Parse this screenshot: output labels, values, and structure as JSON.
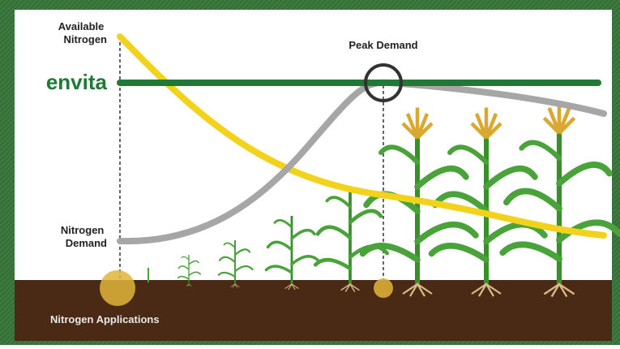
{
  "labels": {
    "available_nitrogen": [
      "Available",
      "Nitrogen"
    ],
    "peak_demand": "Peak Demand",
    "brand": "envita",
    "nitrogen_demand": [
      "Nitrogen",
      "Demand"
    ],
    "nitrogen_applications": "Nitrogen Applications"
  }
}
